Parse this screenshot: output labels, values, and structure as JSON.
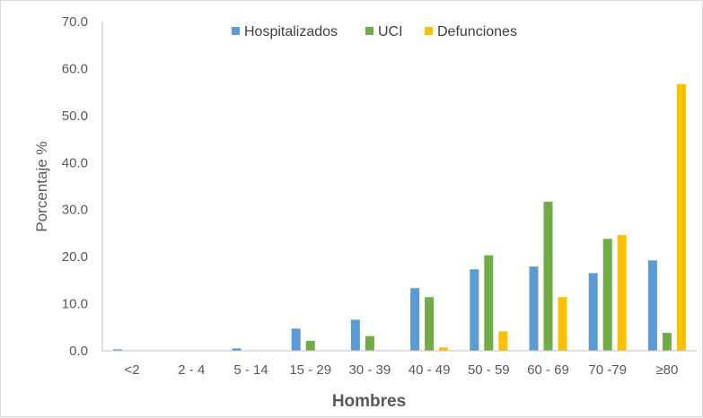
{
  "chart_data": {
    "type": "bar",
    "xlabel": "Hombres",
    "ylabel": "Porcentaje %",
    "ylim": [
      0,
      70
    ],
    "yticks": [
      "0.0",
      "10.0",
      "20.0",
      "30.0",
      "40.0",
      "50.0",
      "60.0",
      "70.0"
    ],
    "grid": false,
    "legend_position": "top",
    "categories": [
      "<2",
      "2 - 4",
      "5 - 14",
      "15 - 29",
      "30 - 39",
      "40 - 49",
      "50 - 59",
      "60 - 69",
      "70 -79",
      "≥80"
    ],
    "series": [
      {
        "name": "Hospitalizados",
        "color": "#5b9bd5",
        "values": [
          0.3,
          0.0,
          0.5,
          4.7,
          6.6,
          13.3,
          17.3,
          17.9,
          16.5,
          19.2
        ]
      },
      {
        "name": "UCI",
        "color": "#70ad47",
        "values": [
          0.0,
          0.0,
          0.0,
          2.1,
          3.1,
          11.4,
          20.3,
          31.7,
          23.8,
          3.8
        ]
      },
      {
        "name": "Defunciones",
        "color": "#ffc000",
        "values": [
          0.0,
          0.0,
          0.0,
          0.0,
          0.0,
          0.7,
          4.1,
          11.4,
          24.6,
          56.7
        ]
      }
    ]
  }
}
